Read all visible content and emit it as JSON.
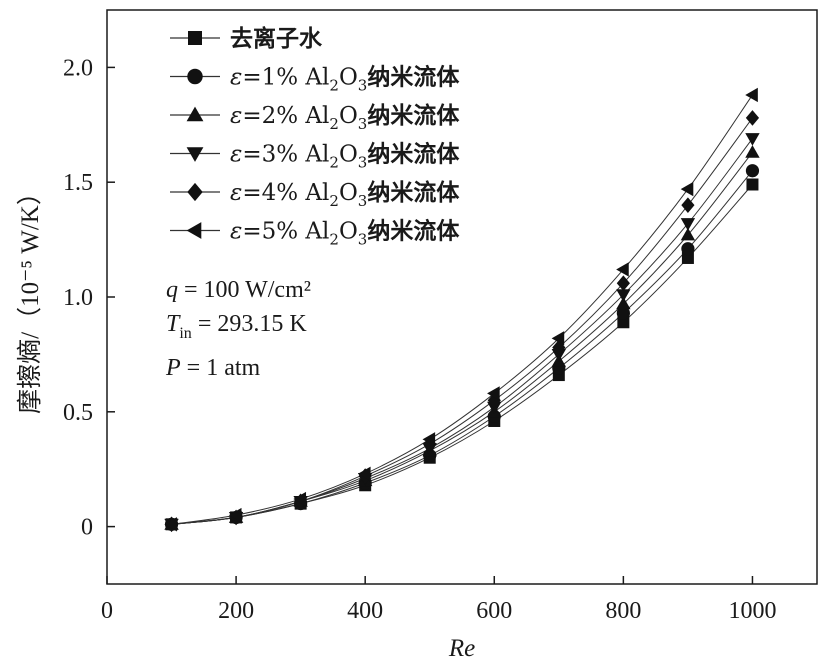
{
  "chart_data": {
    "type": "scatter",
    "xlabel": "Re",
    "ylabel": "摩擦熵/（10⁻⁵ W/K）",
    "xlim": [
      0,
      1100
    ],
    "ylim": [
      -0.25,
      2.25
    ],
    "xticks": [
      "0",
      "200",
      "400",
      "600",
      "800",
      "1000"
    ],
    "yticks": [
      "0",
      "0.5",
      "1.0",
      "1.5",
      "2.0"
    ],
    "xtick_values": [
      0,
      200,
      400,
      600,
      800,
      1000
    ],
    "ytick_values": [
      0,
      0.5,
      1.0,
      1.5,
      2.0
    ],
    "grid": false,
    "legend_position": "top-left",
    "x": [
      100,
      200,
      300,
      400,
      500,
      600,
      700,
      800,
      900,
      1000
    ],
    "series": [
      {
        "name": "去离子水",
        "label": "去离子水",
        "marker": "square",
        "values": [
          0.01,
          0.04,
          0.1,
          0.18,
          0.3,
          0.46,
          0.66,
          0.89,
          1.17,
          1.49
        ]
      },
      {
        "name": "ε=1% Al2O3纳米流体",
        "label": "ε=1% Al₂O₃纳米流体",
        "marker": "circle",
        "values": [
          0.01,
          0.04,
          0.1,
          0.19,
          0.31,
          0.48,
          0.69,
          0.93,
          1.21,
          1.55
        ]
      },
      {
        "name": "ε=2% Al2O3纳米流体",
        "label": "ε=2% Al₂O₃纳米流体",
        "marker": "triangle-up",
        "values": [
          0.01,
          0.04,
          0.11,
          0.2,
          0.33,
          0.5,
          0.72,
          0.97,
          1.27,
          1.63
        ]
      },
      {
        "name": "ε=3% Al2O3纳米流体",
        "label": "ε=3% Al₂O₃纳米流体",
        "marker": "triangle-down",
        "values": [
          0.01,
          0.04,
          0.11,
          0.21,
          0.34,
          0.52,
          0.75,
          1.01,
          1.32,
          1.69
        ]
      },
      {
        "name": "ε=4% Al2O3纳米流体",
        "label": "ε=4% Al₂O₃纳米流体",
        "marker": "diamond",
        "values": [
          0.01,
          0.04,
          0.11,
          0.22,
          0.36,
          0.55,
          0.78,
          1.06,
          1.4,
          1.78
        ]
      },
      {
        "name": "ε=5% Al2O3纳米流体",
        "label": "ε=5% Al₂O₃纳米流体",
        "marker": "triangle-left",
        "values": [
          0.01,
          0.05,
          0.12,
          0.23,
          0.38,
          0.58,
          0.82,
          1.12,
          1.47,
          1.88
        ]
      }
    ],
    "annotations": [
      {
        "text": "q = 100 W/cm²"
      },
      {
        "text": "Tin = 293.15 K"
      },
      {
        "text": "P = 1 atm"
      }
    ],
    "colors": {
      "marker": "#111111",
      "line": "#333333",
      "axis": "#1a1a1a"
    }
  }
}
